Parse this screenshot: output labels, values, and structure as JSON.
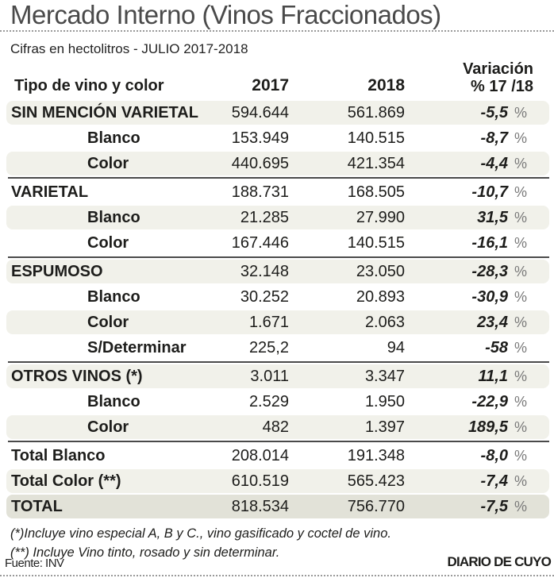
{
  "title": "Mercado Interno (Vinos Fraccionados)",
  "subtitle": "Cifras en hectolitros - JULIO 2017-2018",
  "table": {
    "percent_sign": "%",
    "headers": {
      "type_label": "Tipo de vino y color",
      "year_2017": "2017",
      "year_2018": "2018",
      "variation_line1": "Variación",
      "variation_line2": "% 17 /18"
    },
    "rows": [
      {
        "label": "SIN MENCIÓN VARIETAL",
        "indent": false,
        "shade": "tint",
        "separator_above": false,
        "v2017": "594.644",
        "v2018": "561.869",
        "variation": "-5,5"
      },
      {
        "label": "Blanco",
        "indent": true,
        "shade": "none",
        "separator_above": false,
        "v2017": "153.949",
        "v2018": "140.515",
        "variation": "-8,7"
      },
      {
        "label": "Color",
        "indent": true,
        "shade": "tint",
        "separator_above": false,
        "v2017": "440.695",
        "v2018": "421.354",
        "variation": "-4,4"
      },
      {
        "label": "VARIETAL",
        "indent": false,
        "shade": "none",
        "separator_above": true,
        "v2017": "188.731",
        "v2018": "168.505",
        "variation": "-10,7"
      },
      {
        "label": "Blanco",
        "indent": true,
        "shade": "tint",
        "separator_above": false,
        "v2017": "21.285",
        "v2018": "27.990",
        "variation": "31,5"
      },
      {
        "label": "Color",
        "indent": true,
        "shade": "none",
        "separator_above": false,
        "v2017": "167.446",
        "v2018": "140.515",
        "variation": "-16,1"
      },
      {
        "label": "ESPUMOSO",
        "indent": false,
        "shade": "tint",
        "separator_above": true,
        "v2017": "32.148",
        "v2018": "23.050",
        "variation": "-28,3"
      },
      {
        "label": "Blanco",
        "indent": true,
        "shade": "none",
        "separator_above": false,
        "v2017": "30.252",
        "v2018": "20.893",
        "variation": "-30,9"
      },
      {
        "label": "Color",
        "indent": true,
        "shade": "tint",
        "separator_above": false,
        "v2017": "1.671",
        "v2018": "2.063",
        "variation": "23,4"
      },
      {
        "label": "S/Determinar",
        "indent": true,
        "shade": "none",
        "separator_above": false,
        "v2017": "225,2",
        "v2018": "94",
        "variation": "-58"
      },
      {
        "label": "OTROS VINOS (*)",
        "indent": false,
        "shade": "tint",
        "separator_above": true,
        "v2017": "3.011",
        "v2018": "3.347",
        "variation": "11,1"
      },
      {
        "label": "Blanco",
        "indent": true,
        "shade": "none",
        "separator_above": false,
        "v2017": "2.529",
        "v2018": "1.950",
        "variation": "-22,9"
      },
      {
        "label": "Color",
        "indent": true,
        "shade": "tint",
        "separator_above": false,
        "v2017": "482",
        "v2018": "1.397",
        "variation": "189,5"
      },
      {
        "label": "Total Blanco",
        "indent": false,
        "shade": "none",
        "separator_above": true,
        "v2017": "208.014",
        "v2018": "191.348",
        "variation": "-8,0"
      },
      {
        "label": "Total Color (**)",
        "indent": false,
        "shade": "tint",
        "separator_above": false,
        "v2017": "610.519",
        "v2018": "565.423",
        "variation": "-7,4"
      },
      {
        "label": "TOTAL",
        "indent": false,
        "shade": "total",
        "separator_above": false,
        "v2017": "818.534",
        "v2018": "756.770",
        "variation": "-7,5"
      }
    ]
  },
  "footnotes": [
    "(*)Incluye vino especial A, B y C., vino gasificado y coctel de vino.",
    "(**) Incluye Vino tinto, rosado y sin determinar."
  ],
  "source": "Fuente: INV",
  "credit": "DIARIO DE CUYO",
  "colors": {
    "row_tint": "#f1f1ea",
    "total_tint": "#e2e2d8",
    "separator": "#4a4a4a",
    "percent_gray": "#7a7a7a",
    "title_gray": "#4a4a4a",
    "dotted_rule": "#9a9a9a"
  },
  "chart_data": {
    "type": "table",
    "title": "Mercado Interno (Vinos Fraccionados)",
    "subtitle": "Cifras en hectolitros - JULIO 2017-2018",
    "columns": [
      "Tipo de vino y color",
      "2017",
      "2018",
      "Variación % 17 /18"
    ],
    "rows": [
      [
        "SIN MENCIÓN VARIETAL",
        "594.644",
        "561.869",
        "-5,5 %"
      ],
      [
        "Blanco",
        "153.949",
        "140.515",
        "-8,7 %"
      ],
      [
        "Color",
        "440.695",
        "421.354",
        "-4,4 %"
      ],
      [
        "VARIETAL",
        "188.731",
        "168.505",
        "-10,7 %"
      ],
      [
        "Blanco",
        "21.285",
        "27.990",
        "31,5 %"
      ],
      [
        "Color",
        "167.446",
        "140.515",
        "-16,1 %"
      ],
      [
        "ESPUMOSO",
        "32.148",
        "23.050",
        "-28,3 %"
      ],
      [
        "Blanco",
        "30.252",
        "20.893",
        "-30,9 %"
      ],
      [
        "Color",
        "1.671",
        "2.063",
        "23,4 %"
      ],
      [
        "S/Determinar",
        "225,2",
        "94",
        "-58 %"
      ],
      [
        "OTROS VINOS (*)",
        "3.011",
        "3.347",
        "11,1 %"
      ],
      [
        "Blanco",
        "2.529",
        "1.950",
        "-22,9 %"
      ],
      [
        "Color",
        "482",
        "1.397",
        "189,5 %"
      ],
      [
        "Total Blanco",
        "208.014",
        "191.348",
        "-8,0 %"
      ],
      [
        "Total Color (**)",
        "610.519",
        "565.423",
        "-7,4 %"
      ],
      [
        "TOTAL",
        "818.534",
        "756.770",
        "-7,5 %"
      ]
    ],
    "source": "Fuente: INV",
    "credit": "DIARIO DE CUYO"
  }
}
